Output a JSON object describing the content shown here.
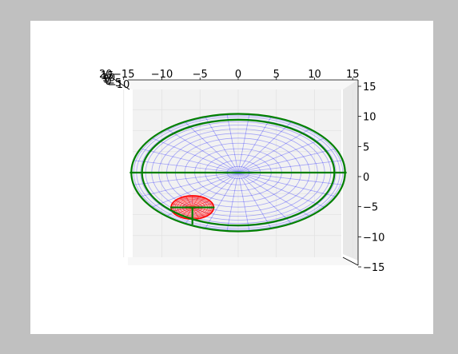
{
  "chart_data": {
    "type": "3d-wireframe",
    "view": "top-down (looking along z axis)",
    "x_axis": {
      "ticks": [
        -15,
        -10,
        -5,
        0,
        5,
        10,
        15
      ],
      "tick_labels": [
        "−15",
        "−10",
        "−5",
        "0",
        "5",
        "10",
        "15"
      ],
      "label_position": "top"
    },
    "y_axis": {
      "ticks": [
        15,
        10,
        5,
        0,
        -5,
        -10,
        -15
      ],
      "tick_labels": [
        "15",
        "10",
        "5",
        "0",
        "−5",
        "−10",
        "−15"
      ],
      "label_position": "right"
    },
    "z_axis": {
      "tick_labels": [
        "20",
        "15",
        "10",
        "5",
        "0",
        "−5",
        "−10"
      ],
      "label_position": "top-left, overlapping"
    },
    "xlim": [
      -15,
      15
    ],
    "ylim": [
      -15,
      15
    ],
    "grid": true,
    "surfaces": [
      {
        "name": "large sphere",
        "shape": "sphere wireframe",
        "center": [
          0,
          0
        ],
        "radius": 14,
        "meridians": 30,
        "latitude_rings": 15,
        "color": "#0000ff"
      },
      {
        "name": "small sphere",
        "shape": "sphere wireframe",
        "center": [
          -6,
          -8.3
        ],
        "radius": 2.8,
        "meridians": 20,
        "latitude_rings": 10,
        "color": "#ff0000"
      }
    ],
    "lines": [
      {
        "shape": "circle",
        "center": [
          0,
          0
        ],
        "radius": 14,
        "color": "#008000"
      },
      {
        "shape": "circle",
        "center": [
          0,
          0
        ],
        "radius": 12.6,
        "color": "#008000"
      },
      {
        "shape": "segment",
        "from": [
          -14.2,
          0
        ],
        "to": [
          14.2,
          0
        ],
        "color": "#008000"
      },
      {
        "shape": "segment",
        "from": [
          -8.9,
          -8.3
        ],
        "to": [
          -3.1,
          -8.3
        ],
        "color": "#008000"
      },
      {
        "shape": "segment",
        "from": [
          -6,
          -8.3
        ],
        "to": [
          -6,
          -12.4
        ],
        "color": "#008000"
      }
    ],
    "colors": {
      "pane": "#f2f2f2",
      "pane_side": "#e8e8e8",
      "gridline": "#e3e3e3",
      "axis": "#000000"
    }
  }
}
